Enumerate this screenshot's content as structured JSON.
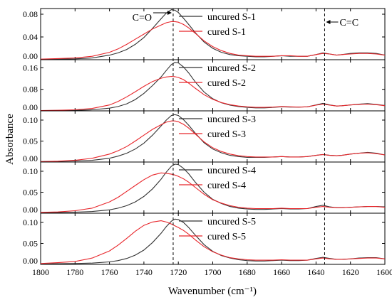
{
  "chart_data": {
    "type": "line",
    "xlabel": "Wavenumber (cm⁻¹)",
    "ylabel": "Absorbance",
    "xlim": [
      1800,
      1600
    ],
    "x_ticks": [
      "1800",
      "1780",
      "1760",
      "1740",
      "1720",
      "1700",
      "1680",
      "1660",
      "1640",
      "1620",
      "1600"
    ],
    "x_tick_values": [
      1800,
      1780,
      1760,
      1740,
      1720,
      1700,
      1680,
      1660,
      1640,
      1620,
      1600
    ],
    "colors": {
      "uncured": "#333333",
      "cured": "#e8262b"
    },
    "annotations": [
      {
        "text": "C=O",
        "x": 1723
      },
      {
        "text": "C=C",
        "x": 1635
      }
    ],
    "x": [
      1800,
      1790,
      1780,
      1770,
      1760,
      1755,
      1750,
      1745,
      1740,
      1735,
      1730,
      1727,
      1724,
      1722,
      1720,
      1717,
      1714,
      1710,
      1705,
      1700,
      1695,
      1690,
      1685,
      1680,
      1675,
      1670,
      1665,
      1660,
      1655,
      1650,
      1645,
      1640,
      1636,
      1632,
      1628,
      1625,
      1620,
      1615,
      1610,
      1605,
      1600
    ],
    "panels": [
      {
        "ylim": [
          0,
          0.09
        ],
        "y_ticks": [
          "0.00",
          "0.04",
          "0.08"
        ],
        "y_tick_values": [
          0,
          0.04,
          0.08
        ],
        "series": [
          {
            "name": "uncured S-1",
            "values": [
              0.0005,
              0.001,
              0.0015,
              0.003,
              0.008,
              0.012,
              0.018,
              0.027,
              0.039,
              0.055,
              0.072,
              0.082,
              0.088,
              0.087,
              0.083,
              0.073,
              0.062,
              0.047,
              0.031,
              0.02,
              0.013,
              0.009,
              0.007,
              0.006,
              0.005,
              0.005,
              0.006,
              0.007,
              0.006,
              0.006,
              0.006,
              0.009,
              0.012,
              0.01,
              0.008,
              0.009,
              0.011,
              0.012,
              0.012,
              0.011,
              0.008
            ]
          },
          {
            "name": "cured S-1",
            "values": [
              0.001,
              0.002,
              0.003,
              0.006,
              0.013,
              0.019,
              0.027,
              0.036,
              0.045,
              0.054,
              0.061,
              0.065,
              0.067,
              0.067,
              0.066,
              0.062,
              0.056,
              0.046,
              0.033,
              0.023,
              0.016,
              0.011,
              0.008,
              0.007,
              0.006,
              0.006,
              0.006,
              0.007,
              0.007,
              0.006,
              0.006,
              0.009,
              0.011,
              0.01,
              0.008,
              0.009,
              0.01,
              0.011,
              0.011,
              0.01,
              0.008
            ]
          }
        ]
      },
      {
        "ylim": [
          0,
          0.19
        ],
        "y_ticks": [
          "0.00",
          "0.08",
          "0.16"
        ],
        "y_tick_values": [
          0,
          0.08,
          0.16
        ],
        "series": [
          {
            "name": "uncured S-2",
            "values": [
              0.001,
              0.0015,
              0.002,
              0.004,
              0.01,
              0.016,
              0.026,
              0.042,
              0.065,
              0.094,
              0.126,
              0.15,
              0.172,
              0.18,
              0.178,
              0.163,
              0.141,
              0.106,
              0.07,
              0.045,
              0.03,
              0.021,
              0.016,
              0.013,
              0.011,
              0.011,
              0.013,
              0.015,
              0.014,
              0.014,
              0.015,
              0.022,
              0.028,
              0.022,
              0.018,
              0.019,
              0.022,
              0.025,
              0.027,
              0.024,
              0.02
            ]
          },
          {
            "name": "cured S-2",
            "values": [
              0.001,
              0.002,
              0.004,
              0.009,
              0.022,
              0.035,
              0.052,
              0.071,
              0.091,
              0.109,
              0.121,
              0.126,
              0.128,
              0.127,
              0.124,
              0.116,
              0.103,
              0.083,
              0.06,
              0.043,
              0.031,
              0.023,
              0.018,
              0.015,
              0.013,
              0.013,
              0.014,
              0.016,
              0.015,
              0.014,
              0.015,
              0.021,
              0.025,
              0.021,
              0.018,
              0.019,
              0.022,
              0.024,
              0.025,
              0.023,
              0.019
            ]
          }
        ]
      },
      {
        "ylim": [
          0,
          0.122
        ],
        "y_ticks": [
          "0.00",
          "0.05",
          "0.10"
        ],
        "y_tick_values": [
          0,
          0.05,
          0.1
        ],
        "series": [
          {
            "name": "uncured S-3",
            "values": [
              0.001,
              0.0015,
              0.0025,
              0.004,
              0.009,
              0.014,
              0.021,
              0.031,
              0.045,
              0.064,
              0.086,
              0.1,
              0.111,
              0.113,
              0.111,
              0.101,
              0.088,
              0.068,
              0.046,
              0.031,
              0.022,
              0.016,
              0.013,
              0.011,
              0.011,
              0.011,
              0.012,
              0.013,
              0.012,
              0.012,
              0.013,
              0.016,
              0.018,
              0.016,
              0.015,
              0.016,
              0.019,
              0.021,
              0.023,
              0.021,
              0.017
            ]
          },
          {
            "name": "cured S-3",
            "values": [
              0.001,
              0.002,
              0.004,
              0.009,
              0.019,
              0.027,
              0.037,
              0.05,
              0.064,
              0.078,
              0.089,
              0.095,
              0.098,
              0.098,
              0.096,
              0.09,
              0.081,
              0.066,
              0.048,
              0.034,
              0.025,
              0.019,
              0.015,
              0.013,
              0.012,
              0.012,
              0.012,
              0.013,
              0.012,
              0.012,
              0.013,
              0.016,
              0.018,
              0.016,
              0.015,
              0.016,
              0.019,
              0.021,
              0.022,
              0.02,
              0.017
            ]
          }
        ]
      },
      {
        "ylim": [
          0,
          0.122
        ],
        "y_ticks": [
          "0.00",
          "0.05",
          "0.10"
        ],
        "y_tick_values": [
          0,
          0.05,
          0.1
        ],
        "series": [
          {
            "name": "uncured S-4",
            "values": [
              0.001,
              0.0015,
              0.0025,
              0.004,
              0.008,
              0.012,
              0.018,
              0.027,
              0.04,
              0.058,
              0.081,
              0.098,
              0.112,
              0.117,
              0.116,
              0.107,
              0.094,
              0.073,
              0.05,
              0.033,
              0.023,
              0.016,
              0.012,
              0.01,
              0.009,
              0.009,
              0.01,
              0.011,
              0.01,
              0.01,
              0.011,
              0.016,
              0.019,
              0.015,
              0.013,
              0.013,
              0.014,
              0.015,
              0.016,
              0.016,
              0.015
            ]
          },
          {
            "name": "cured S-4",
            "values": [
              0.002,
              0.003,
              0.006,
              0.012,
              0.027,
              0.038,
              0.052,
              0.066,
              0.08,
              0.091,
              0.096,
              0.095,
              0.093,
              0.091,
              0.088,
              0.082,
              0.074,
              0.061,
              0.045,
              0.032,
              0.024,
              0.018,
              0.014,
              0.012,
              0.011,
              0.011,
              0.011,
              0.012,
              0.011,
              0.011,
              0.011,
              0.014,
              0.016,
              0.014,
              0.013,
              0.013,
              0.014,
              0.015,
              0.016,
              0.016,
              0.014
            ]
          }
        ]
      },
      {
        "ylim": [
          0,
          0.122
        ],
        "y_ticks": [
          "0.00",
          "0.05",
          "0.10"
        ],
        "y_tick_values": [
          0,
          0.05,
          0.1
        ],
        "series": [
          {
            "name": "uncured S-5",
            "values": [
              0.001,
              0.0015,
              0.002,
              0.003,
              0.006,
              0.009,
              0.014,
              0.022,
              0.034,
              0.052,
              0.074,
              0.09,
              0.103,
              0.108,
              0.107,
              0.1,
              0.088,
              0.069,
              0.047,
              0.031,
              0.021,
              0.015,
              0.011,
              0.009,
              0.008,
              0.008,
              0.009,
              0.01,
              0.009,
              0.009,
              0.01,
              0.014,
              0.017,
              0.014,
              0.012,
              0.012,
              0.013,
              0.015,
              0.016,
              0.016,
              0.013
            ]
          },
          {
            "name": "cured S-5",
            "values": [
              0.002,
              0.004,
              0.007,
              0.015,
              0.032,
              0.046,
              0.062,
              0.079,
              0.093,
              0.101,
              0.104,
              0.101,
              0.096,
              0.092,
              0.088,
              0.081,
              0.072,
              0.058,
              0.042,
              0.03,
              0.022,
              0.016,
              0.013,
              0.011,
              0.01,
              0.01,
              0.01,
              0.011,
              0.01,
              0.01,
              0.01,
              0.013,
              0.015,
              0.013,
              0.012,
              0.012,
              0.013,
              0.014,
              0.015,
              0.015,
              0.013
            ]
          }
        ]
      }
    ]
  }
}
